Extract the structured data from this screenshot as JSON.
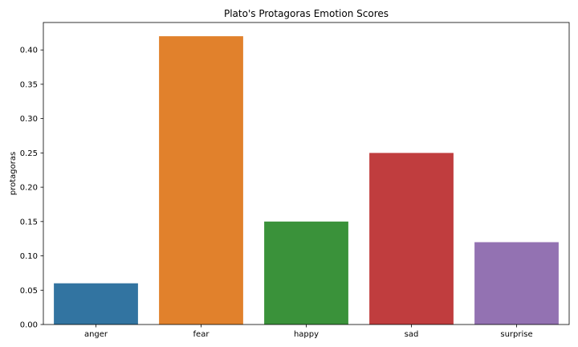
{
  "chart_data": {
    "type": "bar",
    "title": "Plato's Protagoras Emotion Scores",
    "xlabel": "",
    "ylabel": "protagoras",
    "categories": [
      "anger",
      "fear",
      "happy",
      "sad",
      "surprise"
    ],
    "values": [
      0.06,
      0.42,
      0.15,
      0.25,
      0.12
    ],
    "colors": [
      "#3274a1",
      "#e1812c",
      "#3a923a",
      "#c03d3e",
      "#9372b2"
    ],
    "ylim": [
      0,
      0.44
    ],
    "yticks": [
      "0.00",
      "0.05",
      "0.10",
      "0.15",
      "0.20",
      "0.25",
      "0.30",
      "0.35",
      "0.40"
    ],
    "grid": false,
    "legend": "none"
  }
}
